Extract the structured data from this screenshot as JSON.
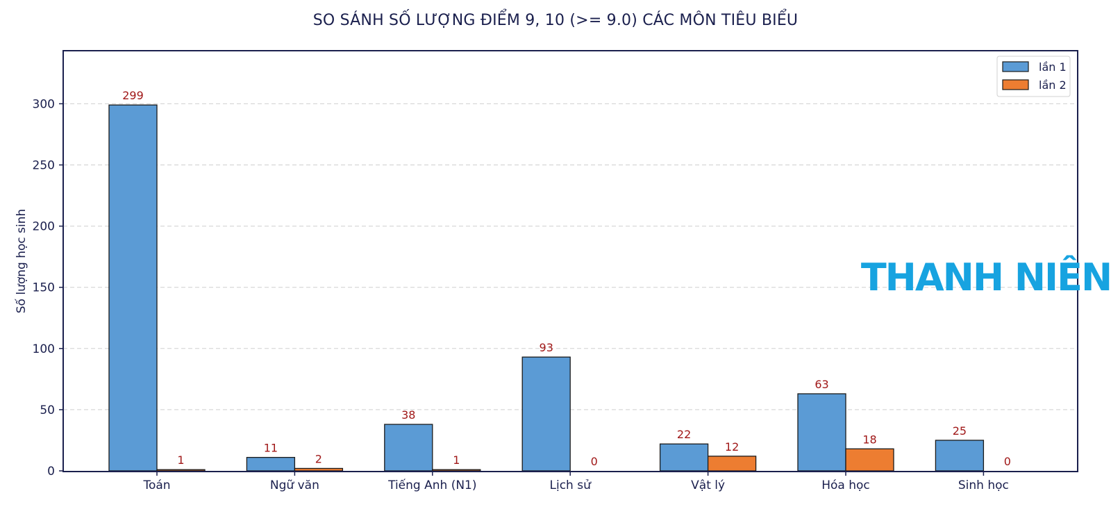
{
  "chart_data": {
    "type": "bar",
    "title": "SO SÁNH SỐ LƯỢNG ĐIỂM 9, 10 (>= 9.0) CÁC MÔN TIÊU BIỂU",
    "xlabel": "",
    "ylabel": "Số lượng học sinh",
    "categories": [
      "Toán",
      "Ngữ văn",
      "Tiếng Anh (N1)",
      "Lịch sử",
      "Vật lý",
      "Hóa học",
      "Sinh học"
    ],
    "series": [
      {
        "name": "lần 1",
        "values": [
          299,
          11,
          38,
          93,
          22,
          63,
          25
        ],
        "color": "#5b9bd5"
      },
      {
        "name": "lần 2",
        "values": [
          1,
          2,
          1,
          0,
          12,
          18,
          0
        ],
        "color": "#ed7d31"
      }
    ],
    "ylim": [
      0,
      345
    ],
    "yticks": [
      0,
      50,
      100,
      150,
      200,
      250,
      300
    ],
    "grid": true,
    "legend_position": "top-right",
    "label_color": "#a01818",
    "frame_color": "#1a1f4d"
  },
  "watermark": {
    "text": "THANH NIÊN",
    "color": "#17a3e0"
  }
}
